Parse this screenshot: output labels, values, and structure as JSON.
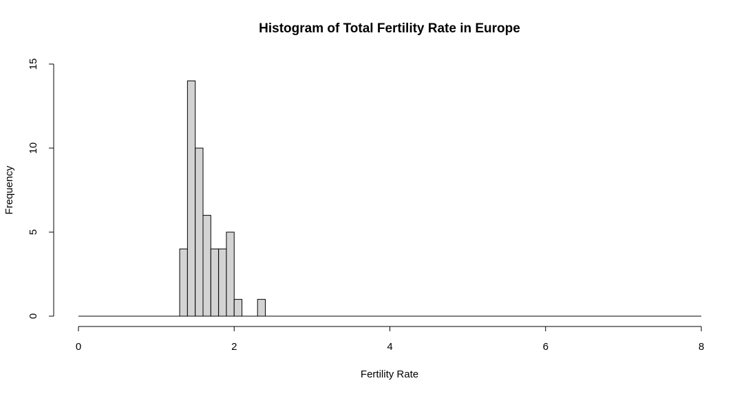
{
  "chart_data": {
    "type": "bar",
    "title": "Histogram of Total Fertility Rate in Europe",
    "xlabel": "Fertility Rate",
    "ylabel": "Frequency",
    "xlim": [
      0,
      8
    ],
    "ylim": [
      0,
      15
    ],
    "x_ticks": [
      "0",
      "2",
      "4",
      "6",
      "8"
    ],
    "y_ticks": [
      "0",
      "5",
      "10",
      "15"
    ],
    "bin_width": 0.1,
    "bins": [
      {
        "start": 0.0,
        "end": 1.3,
        "count": 0
      },
      {
        "start": 1.3,
        "end": 1.4,
        "count": 4
      },
      {
        "start": 1.4,
        "end": 1.5,
        "count": 14
      },
      {
        "start": 1.5,
        "end": 1.6,
        "count": 10
      },
      {
        "start": 1.6,
        "end": 1.7,
        "count": 6
      },
      {
        "start": 1.7,
        "end": 1.8,
        "count": 4
      },
      {
        "start": 1.8,
        "end": 1.9,
        "count": 4
      },
      {
        "start": 1.9,
        "end": 2.0,
        "count": 5
      },
      {
        "start": 2.0,
        "end": 2.1,
        "count": 1
      },
      {
        "start": 2.1,
        "end": 2.3,
        "count": 0
      },
      {
        "start": 2.3,
        "end": 2.4,
        "count": 1
      },
      {
        "start": 2.4,
        "end": 8.0,
        "count": 0
      }
    ],
    "bar_fill": "#d3d3d3",
    "bar_stroke": "#000000",
    "grid": false,
    "legend": "none"
  }
}
